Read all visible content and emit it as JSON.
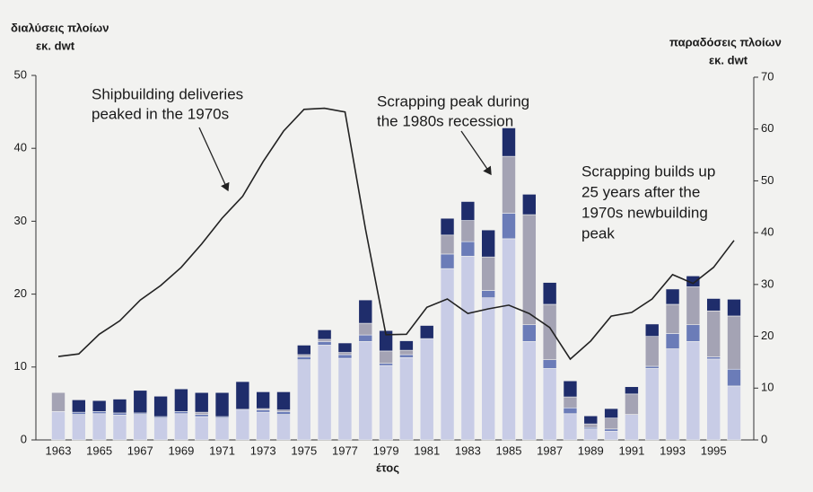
{
  "chart_data": {
    "type": "bar",
    "y_label_lines": [
      "διαλύσεις πλοίων",
      "εκ. dwt"
    ],
    "y2_label_lines": [
      "παραδόσεις πλοίων",
      "εκ. dwt"
    ],
    "x_label": "έτος",
    "annotations": [
      [
        "Shipbuilding deliveries",
        "peaked in the 1970s"
      ],
      [
        "Scrapping peak during",
        "the 1980s recession"
      ],
      [
        "Scrapping builds up",
        "25 years after the",
        "1970s newbuilding",
        "peak"
      ]
    ],
    "categories": [
      "1963",
      null,
      "1965",
      null,
      "1967",
      null,
      "1969",
      null,
      "1971",
      null,
      "1973",
      null,
      "1975",
      null,
      "1977",
      null,
      "1979",
      null,
      "1981",
      null,
      "1983",
      null,
      "1985",
      null,
      "1987",
      null,
      "1989",
      null,
      "1991",
      null,
      "1993",
      null,
      "1995",
      null
    ],
    "ylim": [
      0,
      50
    ],
    "yticks": [
      0,
      10,
      20,
      30,
      40,
      50
    ],
    "y2lim": [
      0,
      70
    ],
    "y2ticks": [
      0,
      10,
      20,
      30,
      40,
      50,
      60,
      70
    ],
    "series": [
      {
        "color": "#c8cce6",
        "values": [
          3.9,
          3.5,
          3.6,
          3.4,
          3.5,
          3.0,
          3.6,
          3.2,
          3.0,
          4.2,
          3.8,
          3.5,
          11.0,
          13.0,
          11.2,
          13.5,
          10.2,
          11.3,
          13.9,
          23.5,
          25.2,
          19.5,
          27.6,
          13.5,
          9.8,
          3.6,
          1.5,
          1.2,
          3.5,
          9.8,
          12.5,
          13.5,
          11.1,
          7.4
        ]
      },
      {
        "color": "#6b7cb8",
        "values": [
          0,
          0.3,
          0.3,
          0.3,
          0.2,
          0.2,
          0.3,
          0.3,
          0.2,
          0,
          0.3,
          0.4,
          0.4,
          0.5,
          0.5,
          0.9,
          0.3,
          0.4,
          0,
          2.0,
          2.0,
          1.0,
          3.5,
          2.3,
          1.2,
          0.8,
          0.2,
          0.3,
          0,
          0.3,
          2.1,
          2.3,
          0.3,
          2.3
        ]
      },
      {
        "color": "#a4a3b4",
        "values": [
          2.6,
          0,
          0,
          0,
          0,
          0,
          0,
          0.3,
          0,
          0,
          0.2,
          0.2,
          0.3,
          0.3,
          0.3,
          1.6,
          1.7,
          0.6,
          0,
          2.6,
          2.9,
          4.6,
          7.8,
          15.1,
          7.6,
          1.5,
          0.5,
          1.5,
          2.8,
          4.1,
          4.0,
          5.2,
          6.3,
          7.3
        ]
      },
      {
        "color": "#1f2d6b",
        "values": [
          0,
          1.7,
          1.5,
          1.9,
          3.1,
          2.8,
          3.1,
          2.7,
          3.3,
          3.8,
          2.3,
          2.5,
          1.3,
          1.3,
          1.3,
          3.2,
          2.8,
          1.3,
          1.8,
          2.3,
          2.6,
          3.7,
          3.9,
          2.8,
          3.0,
          2.2,
          1.1,
          1.3,
          1.0,
          1.7,
          2.1,
          1.5,
          1.7,
          2.3
        ]
      },
      {
        "type": "line",
        "axis": "y2",
        "color": "#222222",
        "values": [
          16.1,
          16.6,
          20.4,
          23.0,
          27.0,
          29.8,
          33.3,
          37.8,
          42.8,
          47.0,
          53.7,
          59.6,
          63.8,
          64.0,
          63.3,
          40.7,
          20.3,
          20.4,
          25.6,
          27.2,
          24.4,
          25.3,
          26.0,
          24.4,
          21.7,
          15.6,
          19.1,
          23.9,
          24.6,
          27.2,
          31.9,
          30.2,
          33.3,
          38.5
        ]
      }
    ]
  }
}
